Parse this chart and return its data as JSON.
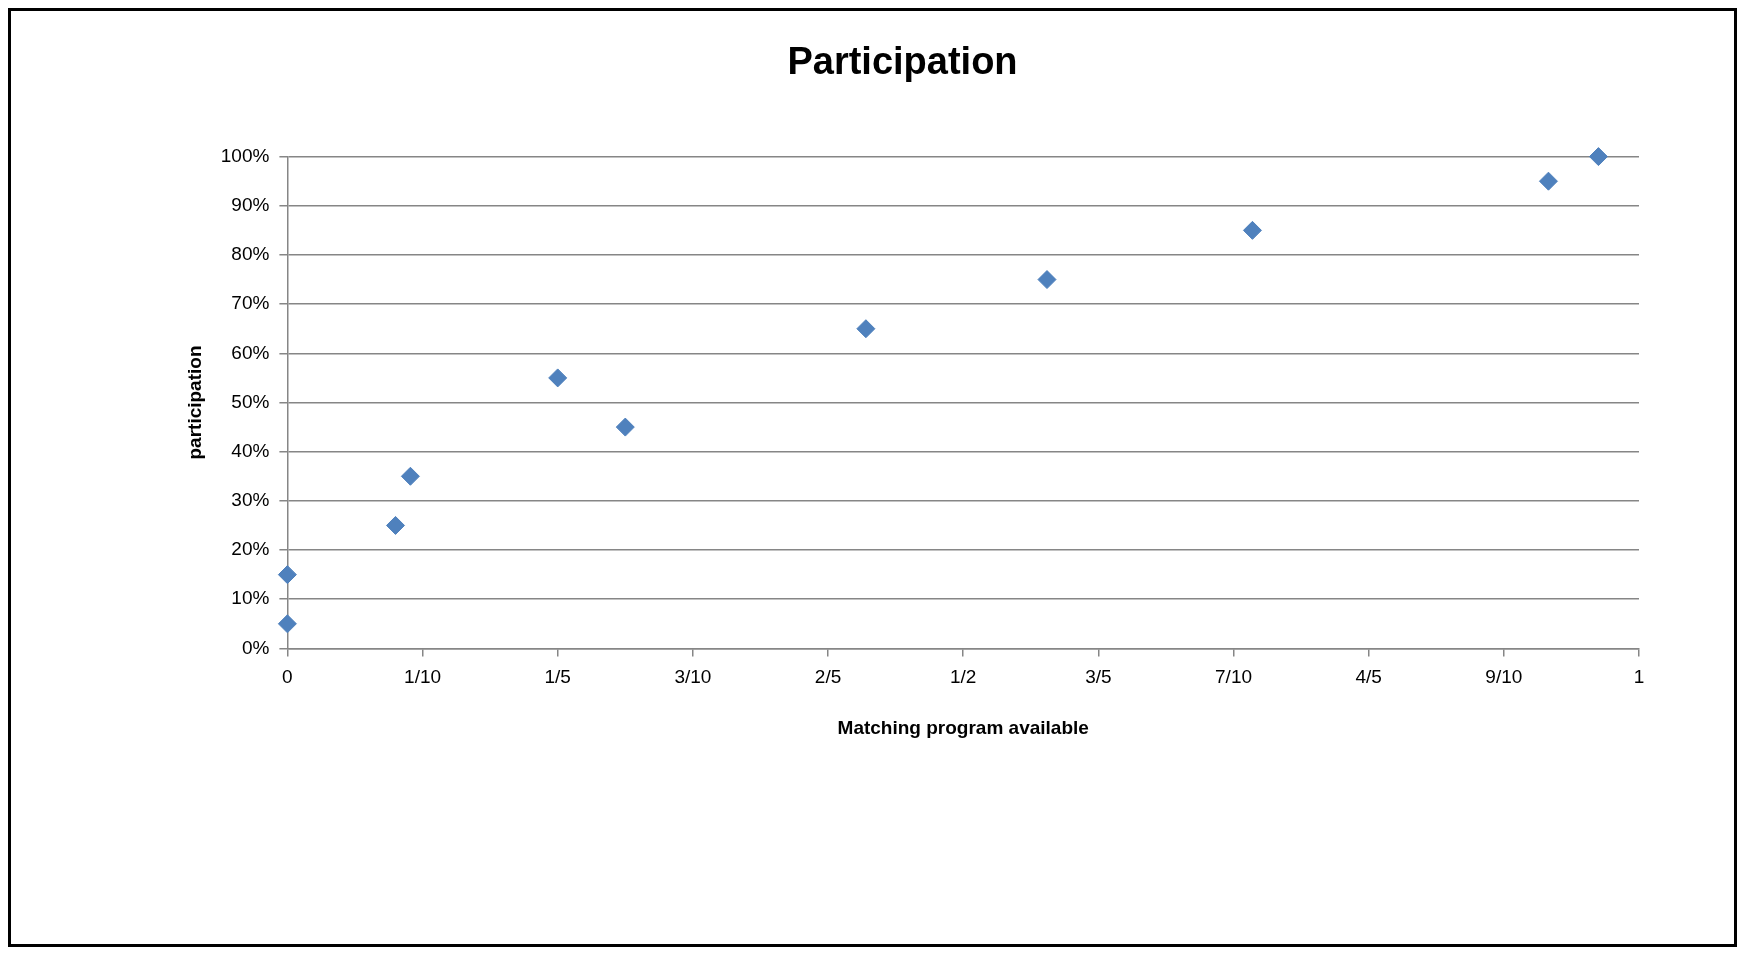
{
  "chart_data": {
    "type": "scatter",
    "title": "Participation",
    "xlabel": "Matching program available",
    "ylabel": "participation",
    "x": [
      0,
      0,
      0.08,
      0.091,
      0.2,
      0.25,
      0.428,
      0.562,
      0.714,
      0.933,
      0.97
    ],
    "series": [
      {
        "color": "#4f81bd",
        "values": [
          5,
          15,
          25,
          35,
          55,
          45,
          65,
          75,
          85,
          95,
          100
        ]
      }
    ],
    "xlim": [
      0,
      1
    ],
    "xticks": [
      0,
      {
        "value": 0.1,
        "label": "1/10"
      },
      {
        "value": 0.2,
        "label": "1/5"
      },
      {
        "value": 0.3,
        "label": "3/10"
      },
      {
        "value": 0.4,
        "label": "2/5"
      },
      {
        "value": 0.5,
        "label": "1/2"
      },
      {
        "value": 0.6,
        "label": "3/5"
      },
      {
        "value": 0.7,
        "label": "7/10"
      },
      {
        "value": 0.8,
        "label": "4/5"
      },
      {
        "value": 0.9,
        "label": "9/10"
      },
      1
    ],
    "ylim": [
      0,
      100
    ],
    "yticks": [
      {
        "value": 0,
        "label": "0%"
      },
      {
        "value": 10,
        "label": "10%"
      },
      {
        "value": 20,
        "label": "20%"
      },
      {
        "value": 30,
        "label": "30%"
      },
      {
        "value": 40,
        "label": "40%"
      },
      {
        "value": 50,
        "label": "50%"
      },
      {
        "value": 60,
        "label": "60%"
      },
      {
        "value": 70,
        "label": "70%"
      },
      {
        "value": 80,
        "label": "80%"
      },
      {
        "value": 90,
        "label": "90%"
      },
      {
        "value": 100,
        "label": "100%"
      }
    ],
    "grid": "y",
    "legend": false,
    "marker": "diamond"
  }
}
